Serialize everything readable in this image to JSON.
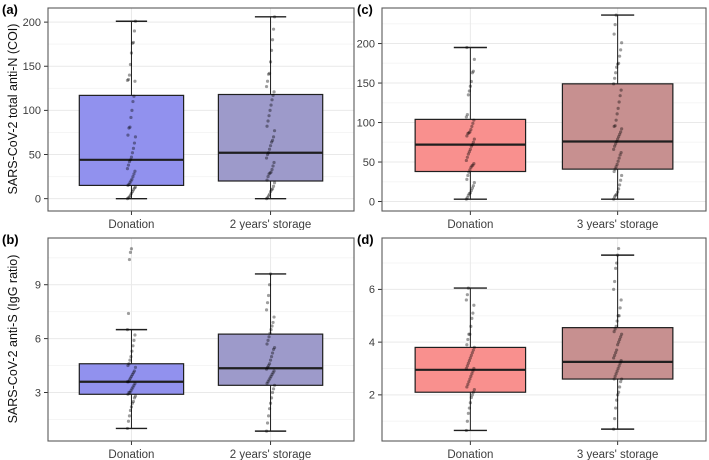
{
  "figure": {
    "background": "#ffffff"
  },
  "style": {
    "panel_border": "#595959",
    "grid_major": "#e9e9e9",
    "grid_minor": "#f5f5f5",
    "box_stroke": "#1f1f1f",
    "tick_text": "#3d3d3d",
    "point_color": "#000000",
    "blue_donation": "#9191ee",
    "blue_storage": "#9d9aca",
    "red_donation": "#f9908e",
    "red_storage": "#c79090"
  },
  "chart_data": [
    {
      "id": "a",
      "type": "boxplot",
      "label": "(a)",
      "y_axis_title": "SARS-CoV-2 total anti-N (COI)",
      "yticks": [
        0,
        50,
        100,
        150,
        200
      ],
      "ylim": [
        -14,
        216
      ],
      "grid": true,
      "categories": [
        "Donation",
        "2 years' storage"
      ],
      "groups": [
        {
          "name": "Donation",
          "color": "#9191ee",
          "min": 0,
          "q1": 15,
          "median": 44,
          "q3": 117,
          "max": 201,
          "points": [
            0,
            1,
            2,
            4,
            6,
            8,
            10,
            12,
            13,
            15,
            16,
            18,
            20,
            22,
            25,
            28,
            31,
            34,
            38,
            42,
            44,
            47,
            52,
            57,
            63,
            70,
            72,
            80,
            81,
            92,
            100,
            110,
            116,
            133,
            134,
            135,
            140,
            152,
            165,
            176,
            177,
            190,
            201
          ]
        },
        {
          "name": "2 years' storage",
          "color": "#9d9aca",
          "min": 0,
          "q1": 20,
          "median": 52,
          "q3": 118,
          "max": 206,
          "points": [
            0,
            1,
            3,
            5,
            8,
            10,
            11,
            14,
            18,
            21,
            25,
            28,
            29,
            30,
            33,
            37,
            41,
            46,
            50,
            52,
            56,
            60,
            64,
            66,
            70,
            77,
            82,
            88,
            94,
            100,
            106,
            112,
            117,
            121,
            127,
            133,
            141,
            142,
            155,
            168,
            180,
            192,
            206
          ]
        }
      ]
    },
    {
      "id": "b",
      "type": "boxplot",
      "label": "(b)",
      "y_axis_title": "SARS-CoV-2 anti-S (IgG ratio)",
      "yticks": [
        3,
        6,
        9
      ],
      "ylim": [
        0.3,
        11.6
      ],
      "grid": true,
      "categories": [
        "Donation",
        "2 years' storage"
      ],
      "groups": [
        {
          "name": "Donation",
          "color": "#9191ee",
          "min": 1.0,
          "q1": 2.9,
          "median": 3.6,
          "q3": 4.6,
          "max": 6.5,
          "points": [
            1.0,
            1.4,
            1.7,
            2.0,
            2.2,
            2.4,
            2.5,
            2.7,
            2.8,
            2.9,
            3.0,
            3.0,
            3.1,
            3.2,
            3.3,
            3.4,
            3.5,
            3.6,
            3.6,
            3.7,
            3.8,
            3.9,
            4.0,
            4.1,
            4.2,
            4.4,
            4.5,
            4.6,
            4.8,
            5.0,
            5.3,
            5.6,
            5.9,
            6.2,
            6.5,
            7.4,
            10.4,
            10.8,
            11.0
          ]
        },
        {
          "name": "2 years' storage",
          "color": "#9d9aca",
          "min": 0.85,
          "q1": 3.4,
          "median": 4.35,
          "q3": 6.25,
          "max": 9.6,
          "points": [
            0.85,
            1.3,
            1.7,
            2.1,
            2.4,
            2.7,
            3.0,
            3.2,
            3.4,
            3.5,
            3.6,
            3.7,
            3.8,
            3.9,
            4.0,
            4.1,
            4.2,
            4.3,
            4.4,
            4.5,
            4.6,
            4.8,
            5.0,
            5.2,
            5.4,
            5.5,
            5.7,
            5.9,
            6.1,
            6.3,
            6.5,
            6.7,
            6.9,
            7.2,
            7.6,
            8.0,
            8.4,
            9.0,
            9.6
          ]
        }
      ]
    },
    {
      "id": "c",
      "type": "boxplot",
      "label": "(c)",
      "y_axis_title": "",
      "yticks": [
        0,
        50,
        100,
        150,
        200
      ],
      "ylim": [
        -12,
        245
      ],
      "grid": true,
      "categories": [
        "Donation",
        "3 years' storage"
      ],
      "groups": [
        {
          "name": "Donation",
          "color": "#f9908e",
          "min": 3,
          "q1": 38,
          "median": 72,
          "q3": 104,
          "max": 195,
          "points": [
            3,
            5,
            8,
            10,
            11,
            14,
            17,
            20,
            24,
            28,
            33,
            37,
            40,
            43,
            45,
            46,
            48,
            52,
            56,
            60,
            63,
            66,
            70,
            72,
            75,
            79,
            83,
            86,
            87,
            88,
            91,
            95,
            99,
            103,
            107,
            110,
            135,
            140,
            146,
            152,
            163,
            165,
            180,
            195
          ]
        },
        {
          "name": "3 years' storage",
          "color": "#c79090",
          "min": 3,
          "q1": 41,
          "median": 76,
          "q3": 149,
          "max": 236,
          "points": [
            3,
            6,
            8,
            9,
            12,
            16,
            21,
            27,
            33,
            38,
            41,
            44,
            47,
            51,
            55,
            59,
            62,
            66,
            70,
            73,
            76,
            79,
            82,
            85,
            88,
            92,
            95,
            96,
            103,
            111,
            118,
            126,
            134,
            141,
            149,
            156,
            163,
            170,
            174,
            175,
            184,
            192,
            201,
            212,
            224,
            236
          ]
        }
      ]
    },
    {
      "id": "d",
      "type": "boxplot",
      "label": "(d)",
      "y_axis_title": "",
      "yticks": [
        2,
        4,
        6
      ],
      "ylim": [
        0.25,
        7.95
      ],
      "grid": true,
      "categories": [
        "Donation",
        "3 years' storage"
      ],
      "groups": [
        {
          "name": "Donation",
          "color": "#f9908e",
          "min": 0.65,
          "q1": 2.1,
          "median": 2.95,
          "q3": 3.8,
          "max": 6.05,
          "points": [
            0.65,
            1.0,
            1.3,
            1.5,
            1.7,
            1.9,
            2.0,
            2.1,
            2.2,
            2.3,
            2.4,
            2.5,
            2.6,
            2.7,
            2.8,
            2.9,
            3.0,
            3.0,
            3.1,
            3.2,
            3.3,
            3.4,
            3.5,
            3.6,
            3.7,
            3.8,
            3.9,
            4.1,
            4.3,
            4.3,
            4.6,
            4.9,
            5.1,
            5.4,
            5.6,
            5.8,
            6.05
          ]
        },
        {
          "name": "3 years' storage",
          "color": "#c79090",
          "min": 0.7,
          "q1": 2.6,
          "median": 3.25,
          "q3": 4.55,
          "max": 7.3,
          "points": [
            0.7,
            1.1,
            1.5,
            1.8,
            2.0,
            2.1,
            2.3,
            2.5,
            2.6,
            2.6,
            2.7,
            2.8,
            2.9,
            3.0,
            3.1,
            3.2,
            3.3,
            3.4,
            3.5,
            3.6,
            3.7,
            3.9,
            4.0,
            4.1,
            4.2,
            4.3,
            4.4,
            4.5,
            4.6,
            4.8,
            5.0,
            5.0,
            5.3,
            5.6,
            6.0,
            6.3,
            6.8,
            7.0,
            7.3,
            7.55
          ]
        }
      ]
    }
  ]
}
